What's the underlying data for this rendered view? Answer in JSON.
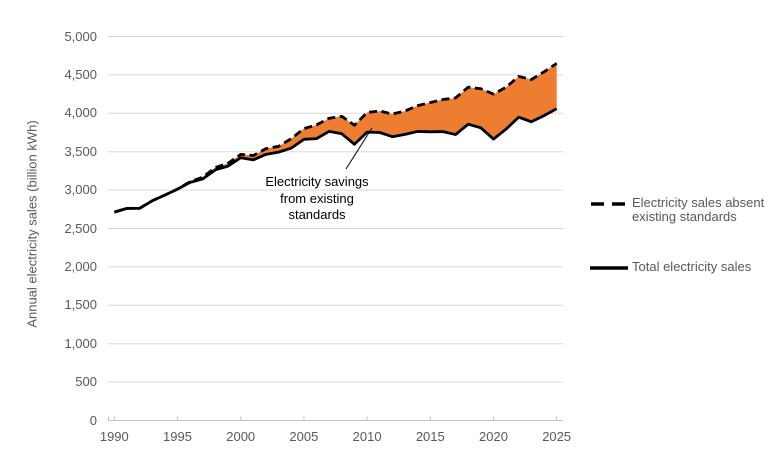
{
  "chart_data": {
    "type": "line",
    "title": "",
    "xlabel": "",
    "ylabel": "Annual electricity sales (billion kWh)",
    "x": [
      1990,
      1991,
      1992,
      1993,
      1994,
      1995,
      1996,
      1997,
      1998,
      1999,
      2000,
      2001,
      2002,
      2003,
      2004,
      2005,
      2006,
      2007,
      2008,
      2009,
      2010,
      2011,
      2012,
      2013,
      2014,
      2015,
      2016,
      2017,
      2018,
      2019,
      2020,
      2021,
      2022,
      2023,
      2024,
      2025
    ],
    "series": [
      {
        "name": "Electricity sales absent existing standards",
        "line_style": "dashed",
        "color": "#000000",
        "values": [
          2713,
          2762,
          2763,
          2861,
          2935,
          3013,
          3110,
          3170,
          3295,
          3350,
          3465,
          3450,
          3540,
          3570,
          3670,
          3800,
          3850,
          3935,
          3960,
          3845,
          4010,
          4030,
          3990,
          4030,
          4100,
          4140,
          4180,
          4200,
          4340,
          4320,
          4250,
          4340,
          4480,
          4440,
          4540,
          4650
        ]
      },
      {
        "name": "Total electricity sales",
        "line_style": "solid",
        "color": "#000000",
        "values": [
          2713,
          2762,
          2763,
          2861,
          2935,
          3013,
          3101,
          3146,
          3264,
          3312,
          3421,
          3394,
          3465,
          3494,
          3547,
          3661,
          3670,
          3765,
          3733,
          3597,
          3755,
          3750,
          3695,
          3725,
          3764,
          3759,
          3762,
          3723,
          3858,
          3811,
          3664,
          3795,
          3950,
          3890,
          3970,
          4060
        ]
      }
    ],
    "fill_between": {
      "upper_series": "Electricity sales absent existing standards",
      "lower_series": "Total electricity sales",
      "color": "#ED7D31",
      "label": "Electricity savings from existing standards"
    },
    "ylim": [
      0,
      5000
    ],
    "ytick_values": [
      0,
      500,
      1000,
      1500,
      2000,
      2500,
      3000,
      3500,
      4000,
      4500,
      5000
    ],
    "ytick_labels": [
      "0",
      "500",
      "1,000",
      "1,500",
      "2,000",
      "2,500",
      "3,000",
      "3,500",
      "4,000",
      "4,500",
      "5,000"
    ],
    "xtick_values": [
      1990,
      1995,
      2000,
      2005,
      2010,
      2015,
      2020,
      2025
    ],
    "xtick_labels": [
      "1990",
      "1995",
      "2000",
      "2005",
      "2010",
      "2015",
      "2020",
      "2025"
    ],
    "grid": true,
    "gridline_color": "#D9D9D9",
    "axis_color": "#C0C0C0",
    "tick_label_color": "#595959",
    "legend_position": "right"
  }
}
